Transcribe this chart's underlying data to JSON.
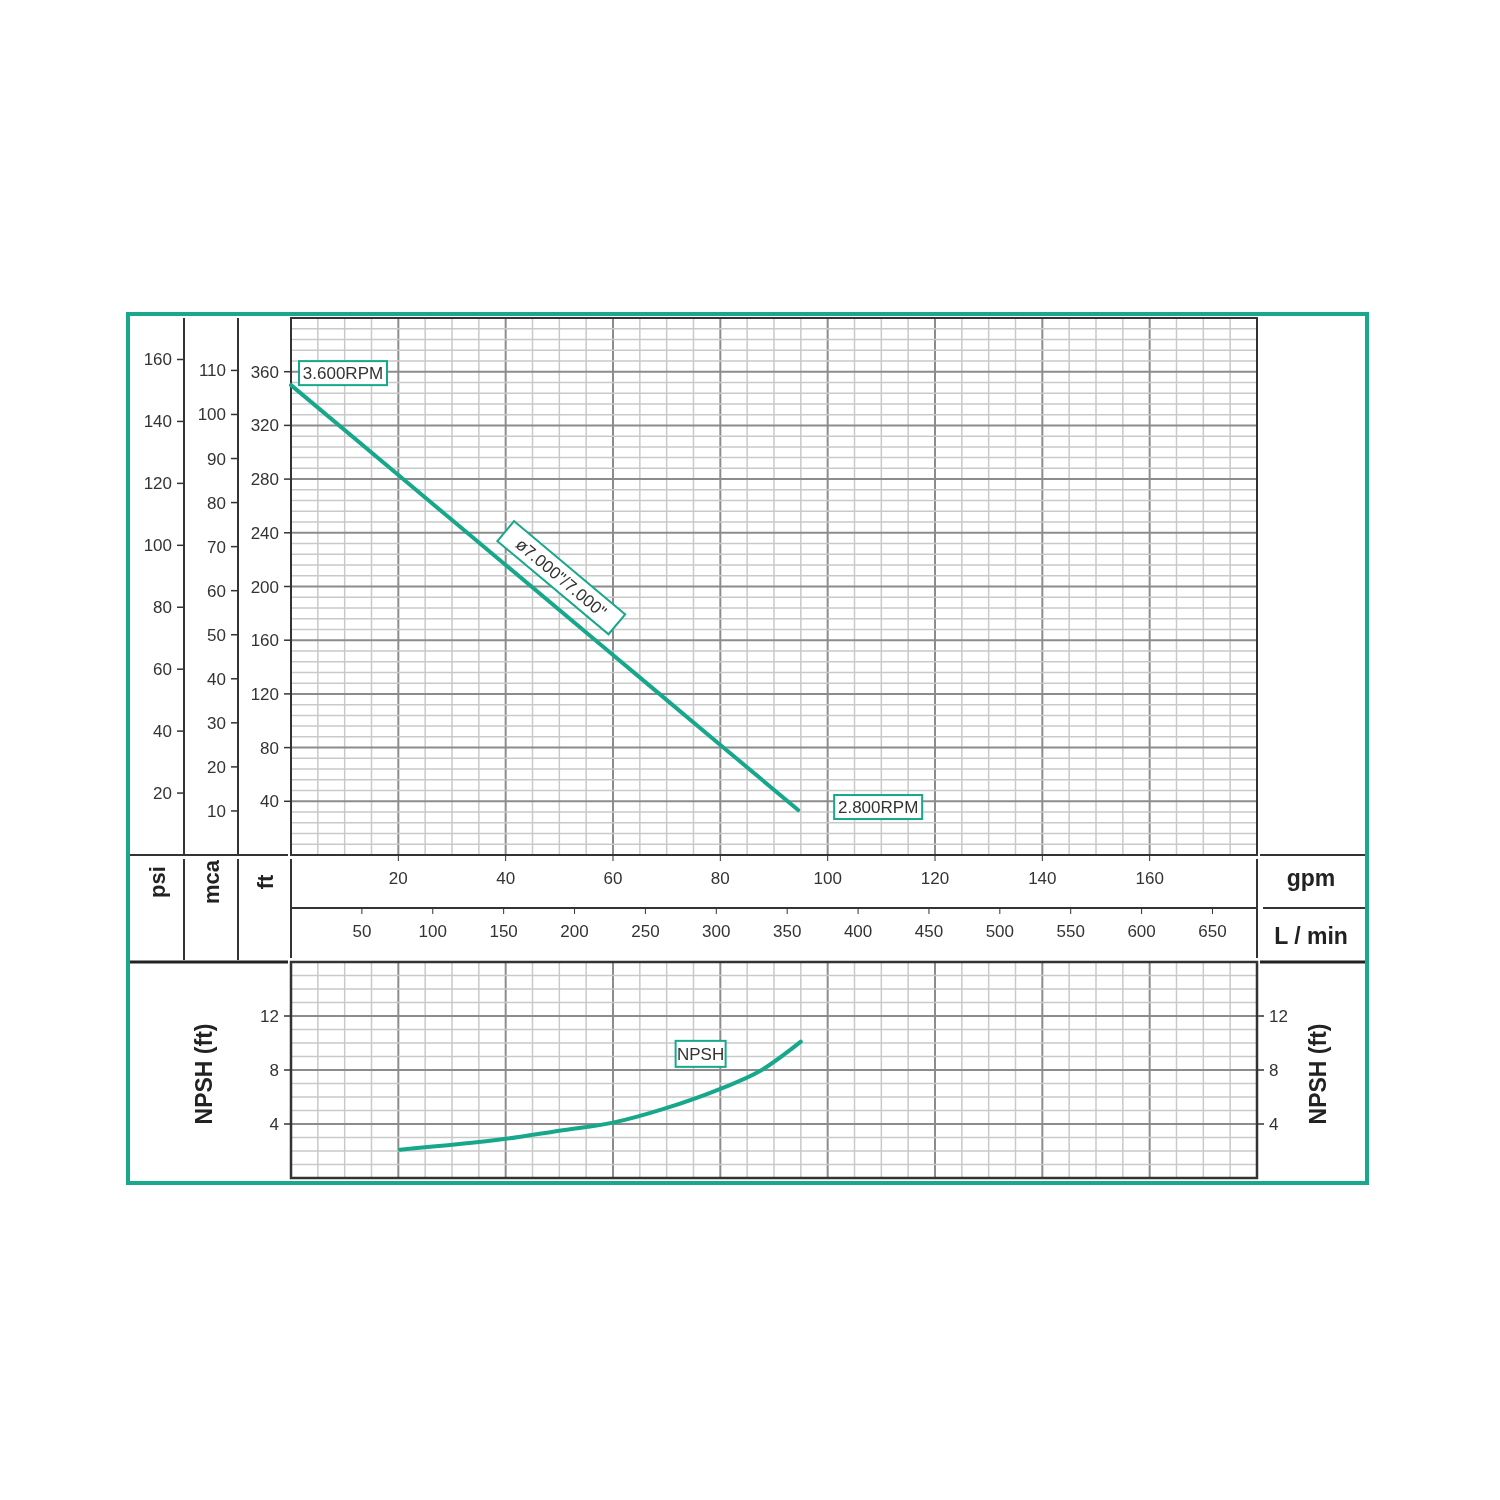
{
  "chart_data": [
    {
      "type": "line",
      "xlabel": "gpm",
      "x2label": "L / min",
      "ylabel": "ft",
      "y2label": "mca",
      "y3label": "psi",
      "xlim": [
        0,
        180
      ],
      "xticks": [
        20,
        40,
        60,
        80,
        100,
        120,
        140,
        160
      ],
      "x2lim": [
        0,
        681.4
      ],
      "x2ticks": [
        50,
        100,
        150,
        200,
        250,
        300,
        350,
        400,
        450,
        500,
        550,
        600,
        650
      ],
      "ylim": [
        0,
        400
      ],
      "yticks": [
        40,
        80,
        120,
        160,
        200,
        240,
        280,
        320,
        360
      ],
      "y2lim": [
        0,
        121.9
      ],
      "y2ticks": [
        10,
        20,
        30,
        40,
        50,
        60,
        70,
        80,
        90,
        100,
        110
      ],
      "y3lim": [
        0,
        173.4
      ],
      "y3ticks": [
        20,
        40,
        60,
        80,
        100,
        120,
        140,
        160
      ],
      "grid": true,
      "series": [
        {
          "name": "ø7.000\"/7.000\"",
          "color": "#17a88b",
          "x": [
            0,
            20,
            40,
            60,
            80,
            94.5
          ],
          "values": [
            350,
            283,
            216,
            149,
            82,
            33.5
          ]
        }
      ],
      "annotations": [
        {
          "text": "3.600RPM",
          "x": 0,
          "y": 350
        },
        {
          "text": "2.800RPM",
          "x": 94.5,
          "y": 33.5
        }
      ]
    },
    {
      "type": "line",
      "ylabel": "NPSH (ft)",
      "y2label": "NPSH (ft)",
      "xlim": [
        0,
        180
      ],
      "xticks": [
        {
          "value": 20,
          "label": null
        },
        {
          "value": 40,
          "label": null
        },
        {
          "value": 60,
          "label": null
        },
        {
          "value": 80,
          "label": null
        },
        {
          "value": 100,
          "label": null
        },
        {
          "value": 120,
          "label": null
        },
        {
          "value": 140,
          "label": null
        },
        {
          "value": 160,
          "label": null
        }
      ],
      "ylim": [
        0,
        16
      ],
      "yticks": [
        4,
        8,
        12
      ],
      "y2lim": [
        0,
        16
      ],
      "y2ticks": [
        4,
        8,
        12
      ],
      "tick_labels": "y",
      "grid": true,
      "series": [
        {
          "name": "NPSH",
          "color": "#17a88b",
          "x": [
            20.3,
            40,
            50,
            60,
            69.3,
            80,
            87.3,
            95
          ],
          "values": [
            2.1,
            2.9,
            3.5,
            4.1,
            5.1,
            6.6,
            7.9,
            10.1
          ]
        }
      ]
    }
  ]
}
